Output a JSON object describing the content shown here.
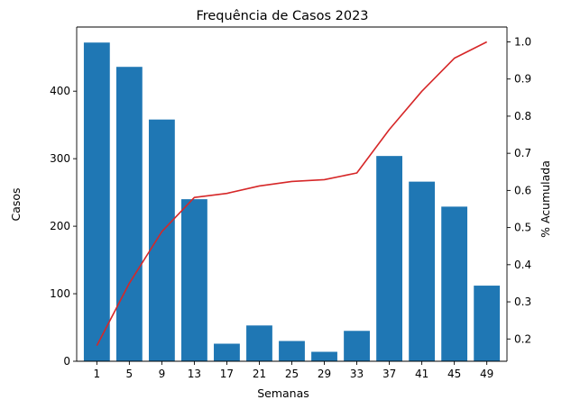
{
  "chart_data": {
    "type": "bar",
    "title": "Frequência de Casos 2023",
    "xlabel": "Semanas",
    "ylabel": "Casos",
    "y2label": "% Acumulada",
    "categories": [
      "1",
      "5",
      "9",
      "13",
      "17",
      "21",
      "25",
      "29",
      "33",
      "37",
      "41",
      "45",
      "49"
    ],
    "ylim": [
      0,
      495
    ],
    "y_ticks": [
      0,
      100,
      200,
      300,
      400
    ],
    "y2lim": [
      0.14,
      1.04
    ],
    "y2_ticks": [
      "0.2",
      "0.3",
      "0.4",
      "0.5",
      "0.6",
      "0.7",
      "0.8",
      "0.9",
      "1.0"
    ],
    "grid": false,
    "series": [
      {
        "type": "bar",
        "axis": "left",
        "color": "#1f77b4",
        "values": [
          472,
          436,
          358,
          240,
          26,
          53,
          30,
          14,
          45,
          304,
          266,
          229,
          112
        ]
      },
      {
        "type": "line",
        "axis": "right",
        "color": "#d62728",
        "values": [
          0.182,
          0.35,
          0.489,
          0.581,
          0.592,
          0.612,
          0.624,
          0.629,
          0.647,
          0.764,
          0.867,
          0.956,
          1.0
        ]
      }
    ]
  }
}
